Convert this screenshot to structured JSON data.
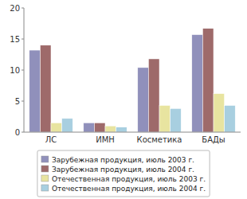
{
  "chart_data": {
    "type": "bar",
    "categories": [
      "ЛС",
      "ИМН",
      "Косметика",
      "БАДы"
    ],
    "series": [
      {
        "name": "Зарубежная продукция, июль 2003 г.",
        "color": "#9090bb",
        "values": [
          13.2,
          1.5,
          10.4,
          15.7
        ]
      },
      {
        "name": "Зарубежная продукция, июль 2004 г.",
        "color": "#9e6a6a",
        "values": [
          14.0,
          1.5,
          11.8,
          16.7
        ]
      },
      {
        "name": "Отечественная продукция, июль 2003 г.",
        "color": "#e8e4a0",
        "values": [
          1.5,
          1.0,
          4.3,
          6.2
        ]
      },
      {
        "name": "Отечественная продукция, июль 2004 г.",
        "color": "#a8cfe0",
        "values": [
          2.2,
          0.8,
          3.8,
          4.3
        ]
      }
    ],
    "ylim": [
      0,
      20
    ],
    "yticks": [
      0,
      5,
      10,
      15,
      20
    ],
    "grid": false,
    "legend": "bottom"
  }
}
